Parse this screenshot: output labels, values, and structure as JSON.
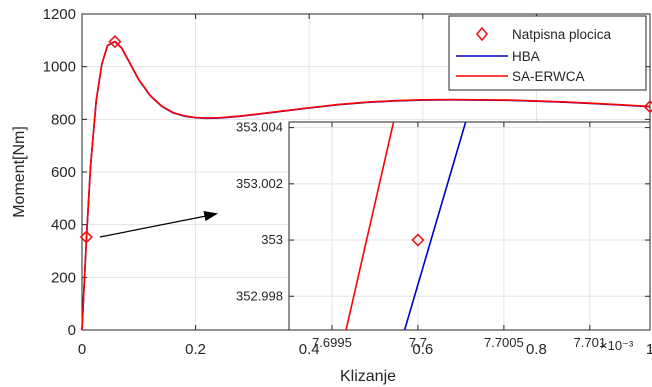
{
  "chart_data": [
    {
      "type": "line",
      "title": "",
      "xlabel": "Klizanje",
      "ylabel": "Moment[Nm]",
      "xlim": [
        0,
        1
      ],
      "ylim": [
        0,
        1200
      ],
      "xticks": [
        0,
        0.2,
        0.4,
        0.6,
        0.8,
        1
      ],
      "xtick_labels": [
        "0",
        "0.2",
        "0.4",
        "0.6",
        "0.8",
        "1"
      ],
      "yticks": [
        0,
        200,
        400,
        600,
        800,
        1000,
        1200
      ],
      "ytick_labels": [
        "0",
        "200",
        "400",
        "600",
        "800",
        "1000",
        "1200"
      ],
      "grid": true,
      "legend_position": "top-right",
      "series": [
        {
          "name": "Natpisna plocica",
          "style": "markers",
          "marker": "diamond",
          "color": "#e41a1c",
          "x": [
            0.0077,
            0.058,
            1.0
          ],
          "y": [
            353,
            1095,
            848
          ]
        },
        {
          "name": "HBA",
          "style": "line",
          "color": "#0000cc",
          "x": [
            0,
            0.004,
            0.008,
            0.015,
            0.025,
            0.035,
            0.045,
            0.058,
            0.07,
            0.085,
            0.1,
            0.12,
            0.14,
            0.16,
            0.18,
            0.2,
            0.22,
            0.24,
            0.26,
            0.28,
            0.3,
            0.35,
            0.4,
            0.45,
            0.5,
            0.55,
            0.6,
            0.65,
            0.7,
            0.75,
            0.8,
            0.85,
            0.9,
            0.95,
            1.0
          ],
          "y": [
            0,
            180,
            353,
            620,
            870,
            1010,
            1080,
            1095,
            1070,
            1010,
            950,
            890,
            850,
            825,
            812,
            806,
            804,
            805,
            808,
            812,
            817,
            830,
            843,
            855,
            864,
            870,
            873,
            874,
            873,
            872,
            869,
            865,
            860,
            854,
            848
          ]
        },
        {
          "name": "SA-ERWCA",
          "style": "line",
          "color": "#ff0000",
          "x": [
            0,
            0.004,
            0.008,
            0.015,
            0.025,
            0.035,
            0.045,
            0.058,
            0.07,
            0.085,
            0.1,
            0.12,
            0.14,
            0.16,
            0.18,
            0.2,
            0.22,
            0.24,
            0.26,
            0.28,
            0.3,
            0.35,
            0.4,
            0.45,
            0.5,
            0.55,
            0.6,
            0.65,
            0.7,
            0.75,
            0.8,
            0.85,
            0.9,
            0.95,
            1.0
          ],
          "y": [
            0,
            181,
            354,
            621,
            871,
            1011,
            1081,
            1096,
            1071,
            1011,
            951,
            891,
            851,
            826,
            813,
            807,
            805,
            806,
            809,
            813,
            818,
            831,
            844,
            856,
            865,
            871,
            874,
            875,
            874,
            873,
            870,
            866,
            861,
            855,
            849
          ]
        }
      ]
    },
    {
      "type": "line",
      "title": "",
      "xlabel": "",
      "ylabel": "",
      "x_exponent_label": "×10⁻³",
      "xlim": [
        7.69925,
        7.70135
      ],
      "ylim": [
        352.9968,
        353.0042
      ],
      "xticks": [
        7.6995,
        7.7,
        7.7005,
        7.701
      ],
      "xtick_labels": [
        "7.6995",
        "7.7",
        "7.7005",
        "7.701"
      ],
      "yticks": [
        352.998,
        353,
        353.002,
        353.004
      ],
      "ytick_labels": [
        "352.998",
        "353",
        "353.002",
        "353.004"
      ],
      "grid": true,
      "series": [
        {
          "name": "Natpisna plocica",
          "style": "markers",
          "marker": "diamond",
          "color": "#e41a1c",
          "x": [
            7.7
          ],
          "y": [
            353
          ]
        },
        {
          "name": "HBA",
          "style": "line",
          "color": "#0000cc",
          "x": [
            7.69992,
            7.70028
          ],
          "y": [
            352.99675,
            353.00425
          ]
        },
        {
          "name": "SA-ERWCA",
          "style": "line",
          "color": "#ff0000",
          "x": [
            7.69958,
            7.69986
          ],
          "y": [
            352.99675,
            353.00425
          ]
        }
      ]
    }
  ]
}
